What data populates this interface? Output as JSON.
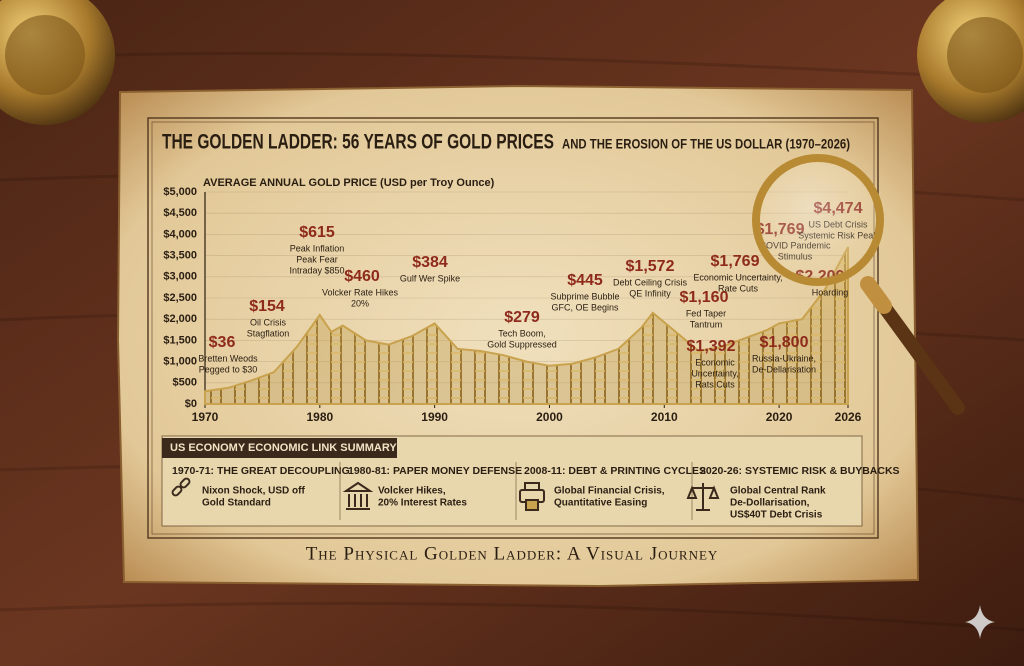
{
  "chart_data": {
    "type": "area",
    "title": "THE GOLDEN LADDER: 56 YEARS OF GOLD PRICES",
    "subtitle": "AND THE EROSION OF THE US DOLLAR (1970–2026)",
    "y_label": "AVERAGE ANNUAL GOLD PRICE (USD per Troy Ounce)",
    "x": [
      1970,
      1972,
      1974,
      1976,
      1978,
      1980,
      1981,
      1982,
      1984,
      1986,
      1988,
      1990,
      1992,
      1994,
      1996,
      1998,
      2000,
      2002,
      2004,
      2006,
      2008,
      2009,
      2011,
      2013,
      2015,
      2017,
      2019,
      2020,
      2022,
      2024,
      2026
    ],
    "values": [
      300,
      380,
      550,
      750,
      1350,
      2100,
      1700,
      1850,
      1500,
      1400,
      1600,
      1900,
      1300,
      1250,
      1150,
      1000,
      900,
      950,
      1100,
      1300,
      1800,
      2150,
      1700,
      1250,
      1350,
      1550,
      1750,
      1900,
      2000,
      2700,
      3700
    ],
    "color": "#c9a24e",
    "xlim": [
      1970,
      2026
    ],
    "xticks": [
      1970,
      1980,
      1990,
      2000,
      2010,
      2020,
      2026
    ],
    "ylim": [
      0,
      5000
    ],
    "yticks": [
      {
        "value": 0,
        "label": "$0"
      },
      {
        "value": 500,
        "label": "$500"
      },
      {
        "value": 1000,
        "label": "$1,000"
      },
      {
        "value": 1500,
        "label": "$1,500"
      },
      {
        "value": 2000,
        "label": "$2,000"
      },
      {
        "value": 2500,
        "label": "$2,500"
      },
      {
        "value": 3000,
        "label": "$3,000"
      },
      {
        "value": 3500,
        "label": "$3,500"
      },
      {
        "value": 4000,
        "label": "$4,000"
      },
      {
        "value": 4500,
        "label": "$4,500"
      },
      {
        "value": 5000,
        "label": "$5,000"
      }
    ],
    "grid": true,
    "annotations": [
      {
        "label": "$36",
        "lines": [
          "Bretten Weods",
          "Pegged to $30"
        ]
      },
      {
        "label": "$154",
        "lines": [
          "Oil Crisis",
          "Stagflation"
        ]
      },
      {
        "label": "$615",
        "lines": [
          "Peak Inflation",
          "Peak Fear",
          "Intraday $850"
        ]
      },
      {
        "label": "$460",
        "lines": [
          "Volcker Rate Hikes",
          "20%"
        ]
      },
      {
        "label": "$384",
        "lines": [
          "Gulf Wer Spike"
        ]
      },
      {
        "label": "$279",
        "lines": [
          "Tech Boom,",
          "Gold Suppressed"
        ]
      },
      {
        "label": "$445",
        "lines": [
          "Subprime Bubble",
          "GFC, OE Begins"
        ]
      },
      {
        "label": "$1,572",
        "lines": [
          "Debt Ceiling Crisis",
          "QE Infinity"
        ]
      },
      {
        "label": "$1,160",
        "lines": [
          "Fed Taper",
          "Tantrum"
        ]
      },
      {
        "label": "$1,392",
        "lines": [
          "Economic",
          "Uncertainty,",
          "Rats Cuts"
        ]
      },
      {
        "label": "$1,769",
        "lines": [
          "Economic Uncertainty,",
          "Rate Cuts"
        ]
      },
      {
        "label": "$1,769",
        "lines": [
          "COVID Pandemic",
          "Stimulus"
        ]
      },
      {
        "label": "$1,800",
        "lines": [
          "Russia-Ukraine,",
          "De-Dellarisation"
        ]
      },
      {
        "label": "$4,474",
        "lines": [
          "US Debt Crisis",
          "Systemic Risk Peak"
        ]
      },
      {
        "label": "$2,209",
        "lines": [
          "Hoarding"
        ]
      }
    ]
  },
  "summary": {
    "title": "US ECONOMY ECONOMIC LINK SUMMARY",
    "items": [
      {
        "heading": "1970-71: THE GREAT DECOUPLING",
        "lines": [
          "Nixon Shock, USD off",
          "Gold Standard"
        ]
      },
      {
        "heading": "1980-81: PAPER MONEY DEFENSE",
        "lines": [
          "Volcker Hikes,",
          "20% Interest Rates"
        ]
      },
      {
        "heading": "2008-11: DEBT & PRINTING CYCLES",
        "lines": [
          "Global Financial Crisis,",
          "Quantitative Easing"
        ]
      },
      {
        "heading": "2020-26: SYSTEMIC RISK & BUYBACKS",
        "lines": [
          "Global Central Rank",
          "De-Dollarisation,",
          "US$40T Debt Crisis"
        ]
      }
    ]
  },
  "footer": "The Physical Golden Ladder: A Visual Journey"
}
